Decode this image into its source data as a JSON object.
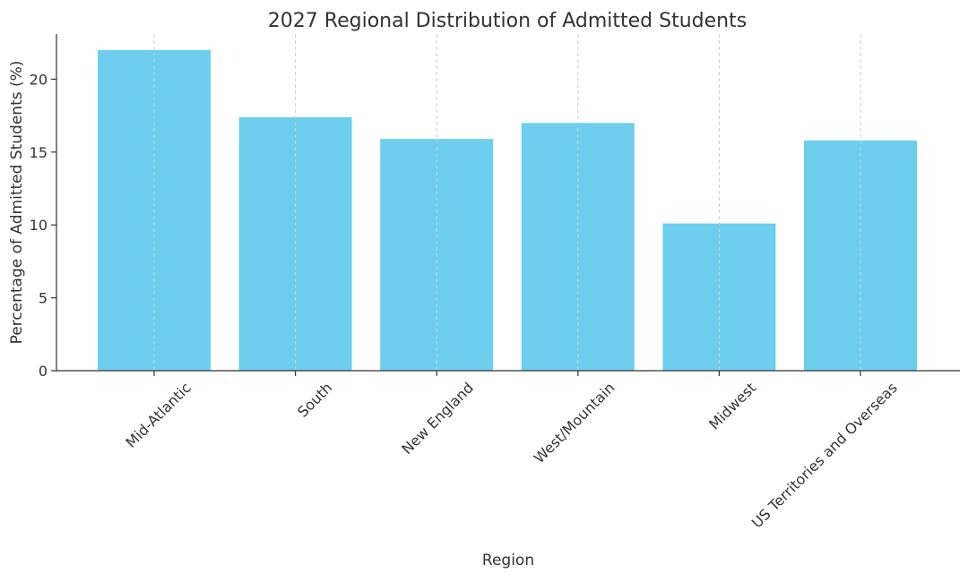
{
  "chart_data": {
    "type": "bar",
    "title": "2027 Regional Distribution of Admitted Students",
    "xlabel": "Region",
    "ylabel": "Percentage of Admitted Students (%)",
    "categories": [
      "Mid-Atlantic",
      "South",
      "New England",
      "West/Mountain",
      "Midwest",
      "US Territories and Overseas"
    ],
    "values": [
      22.0,
      17.4,
      15.9,
      17.0,
      10.1,
      15.8
    ],
    "ylim": [
      0,
      23.1
    ],
    "yticks": [
      0,
      5,
      10,
      15,
      20
    ],
    "grid": "vertical dashed",
    "legend": "none",
    "bar_color": "#6dcfed",
    "axis_color": "#333333",
    "grid_color": "#cccccc"
  }
}
